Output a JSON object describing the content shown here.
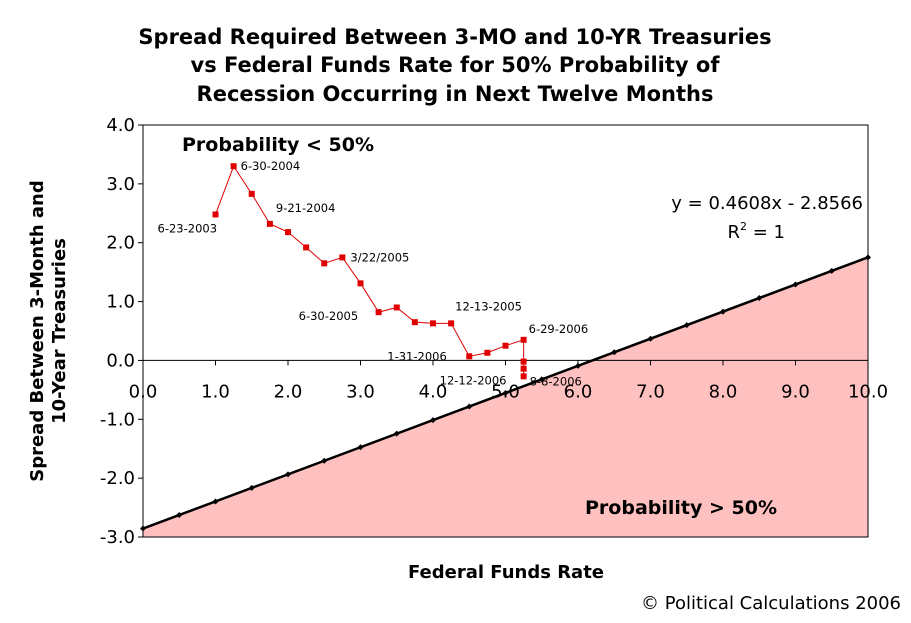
{
  "chart_data": {
    "type": "scatter",
    "title_lines": [
      "Spread Required Between 3-MO and 10-YR Treasuries",
      "vs Federal Funds Rate for 50% Probability of",
      "Recession Occurring in Next Twelve Months"
    ],
    "xlabel": "Federal Funds Rate",
    "ylabel_lines": [
      "Spread Between 3-Month and",
      "10-Year Treasuries"
    ],
    "xlim": [
      0,
      10
    ],
    "ylim": [
      -3,
      4
    ],
    "x_ticks": [
      "0.0",
      "1.0",
      "2.0",
      "3.0",
      "4.0",
      "5.0",
      "6.0",
      "7.0",
      "8.0",
      "9.0",
      "10.0"
    ],
    "y_ticks": [
      "4.0",
      "3.0",
      "2.0",
      "1.0",
      "0.0",
      "-1.0",
      "-2.0",
      "-3.0"
    ],
    "grid": false,
    "regions": {
      "above": "Probability < 50%",
      "below": "Probability > 50%"
    },
    "equation": {
      "line1": "y = 0.4608x - 2.8566",
      "r2_prefix": "R",
      "r2_exp": "2",
      "r2_suffix": " = 1",
      "slope": 0.4608,
      "intercept": -2.8566
    },
    "fit_points_x": [
      0,
      0.5,
      1.0,
      1.5,
      2.0,
      2.5,
      3.0,
      3.5,
      4.0,
      4.5,
      5.0,
      5.5,
      6.0,
      6.5,
      7.0,
      7.5,
      8.0,
      8.5,
      9.0,
      9.5,
      10.0
    ],
    "series": [
      {
        "color": "#e00000",
        "points": [
          {
            "x": 1.0,
            "y": 2.48,
            "label": "6-23-2003"
          },
          {
            "x": 1.25,
            "y": 3.3,
            "label": "6-30-2004"
          },
          {
            "x": 1.5,
            "y": 2.83
          },
          {
            "x": 1.75,
            "y": 2.32,
            "label": "9-21-2004"
          },
          {
            "x": 2.0,
            "y": 2.18
          },
          {
            "x": 2.25,
            "y": 1.92
          },
          {
            "x": 2.5,
            "y": 1.65
          },
          {
            "x": 2.75,
            "y": 1.75,
            "label": "3/22/2005"
          },
          {
            "x": 3.0,
            "y": 1.31
          },
          {
            "x": 3.25,
            "y": 0.82,
            "label": "6-30-2005"
          },
          {
            "x": 3.5,
            "y": 0.9
          },
          {
            "x": 3.75,
            "y": 0.65
          },
          {
            "x": 4.0,
            "y": 0.63
          },
          {
            "x": 4.25,
            "y": 0.63,
            "label": "12-13-2005"
          },
          {
            "x": 4.5,
            "y": 0.07,
            "label": "1-31-2006"
          },
          {
            "x": 4.75,
            "y": 0.13
          },
          {
            "x": 5.0,
            "y": 0.25
          },
          {
            "x": 5.25,
            "y": 0.35,
            "label": "6-29-2006"
          },
          {
            "x": 5.25,
            "y": -0.02,
            "label": "8-8-2006"
          },
          {
            "x": 5.25,
            "y": -0.14
          },
          {
            "x": 5.25,
            "y": -0.27,
            "label": "12-12-2006"
          }
        ]
      }
    ]
  },
  "colors": {
    "fill_below": "#ffc0c0",
    "series": "#e00000",
    "fit_line": "#000000"
  },
  "copyright": "© Political Calculations 2006"
}
